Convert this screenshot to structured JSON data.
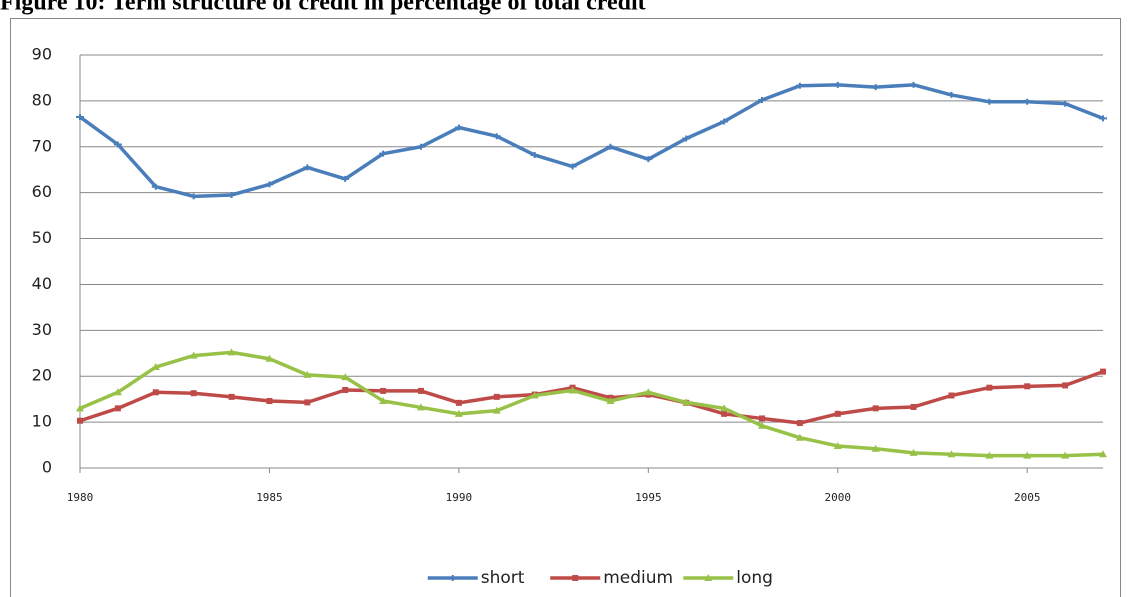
{
  "chart_data": {
    "type": "line",
    "title": "Figure 10: Term structure of credit in percentage of total credit",
    "x": [
      1980,
      1981,
      1982,
      1983,
      1984,
      1985,
      1986,
      1987,
      1988,
      1989,
      1990,
      1991,
      1992,
      1993,
      1994,
      1995,
      1996,
      1997,
      1998,
      1999,
      2000,
      2001,
      2002,
      2003,
      2004,
      2005,
      2006,
      2007
    ],
    "series": [
      {
        "name": "short",
        "color": "#4a7ebb",
        "values": [
          76.5,
          70.5,
          61.3,
          59.2,
          59.5,
          61.8,
          65.5,
          63,
          68.5,
          70,
          74.2,
          72.3,
          68.2,
          65.7,
          70,
          67.3,
          71.8,
          75.5,
          80.2,
          83.3,
          83.5,
          83,
          83.5,
          81.3,
          79.8,
          79.8,
          79.4,
          76.2
        ]
      },
      {
        "name": "medium",
        "color": "#be4b48",
        "values": [
          10.3,
          13,
          16.5,
          16.3,
          15.5,
          14.6,
          14.3,
          17,
          16.8,
          16.8,
          14.2,
          15.5,
          16,
          17.5,
          15.3,
          16,
          14.2,
          11.8,
          10.8,
          9.8,
          11.8,
          13,
          13.3,
          15.8,
          17.5,
          17.8,
          18,
          21
        ]
      },
      {
        "name": "long",
        "color": "#98c148",
        "values": [
          13,
          16.5,
          22,
          24.5,
          25.2,
          23.8,
          20.3,
          19.8,
          14.6,
          13.2,
          11.8,
          12.5,
          15.8,
          16.9,
          14.6,
          16.5,
          14.3,
          13,
          9.2,
          6.6,
          4.8,
          4.2,
          3.3,
          3,
          2.7,
          2.7,
          2.7,
          3
        ]
      }
    ],
    "xlim": [
      1980,
      2007
    ],
    "xticks": [
      1980,
      1985,
      1990,
      1995,
      2000,
      2005
    ],
    "ylim": [
      0,
      90
    ],
    "yticks": [
      0,
      10,
      20,
      30,
      40,
      50,
      60,
      70,
      80,
      90
    ],
    "grid": true,
    "legend": "bottom"
  }
}
